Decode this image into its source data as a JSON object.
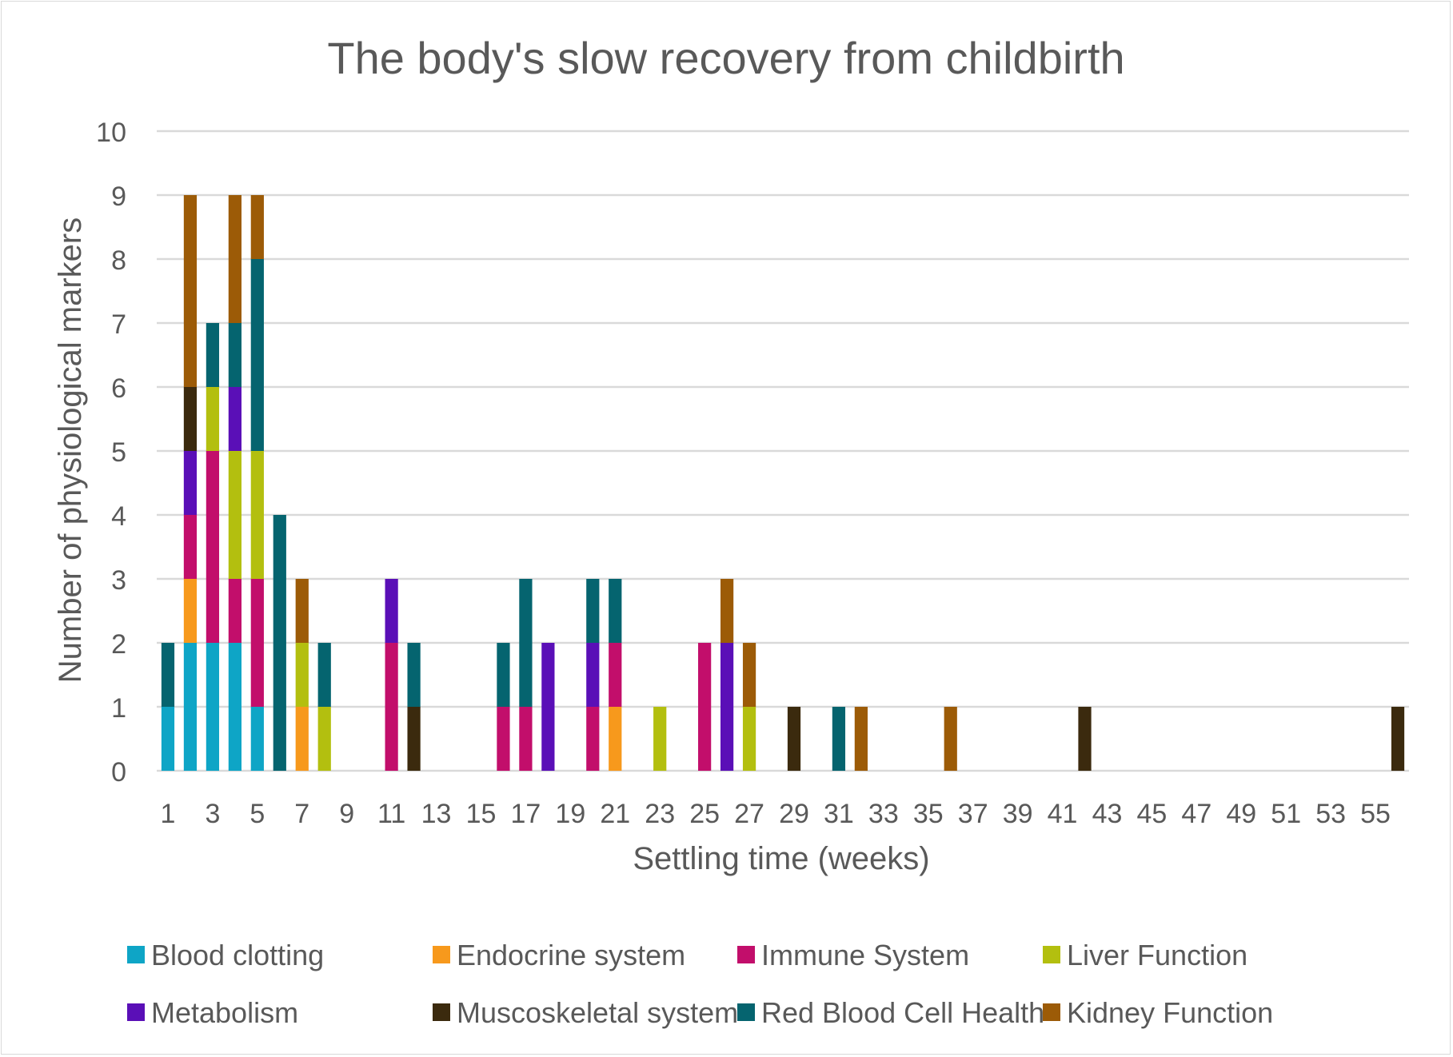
{
  "chart_data": {
    "type": "bar",
    "stacked": true,
    "title": "The body's slow recovery from childbirth",
    "xlabel": "Settling time (weeks)",
    "ylabel": "Number of physiological markers",
    "ylim": [
      0,
      10
    ],
    "yticks": [
      "0",
      "1",
      "2",
      "3",
      "4",
      "5",
      "6",
      "7",
      "8",
      "9",
      "10"
    ],
    "grid": true,
    "legend_position": "bottom",
    "categories": [
      "1",
      "2",
      "3",
      "4",
      "5",
      "6",
      "7",
      "8",
      "9",
      "10",
      "11",
      "12",
      "13",
      "14",
      "15",
      "16",
      "17",
      "18",
      "19",
      "20",
      "21",
      "22",
      "23",
      "24",
      "25",
      "26",
      "27",
      "28",
      "29",
      "30",
      "31",
      "32",
      "33",
      "34",
      "35",
      "36",
      "37",
      "38",
      "39",
      "40",
      "41",
      "42",
      "43",
      "44",
      "45",
      "46",
      "47",
      "48",
      "49",
      "50",
      "51",
      "52",
      "53",
      "54",
      "55",
      "56"
    ],
    "xtick_labels": [
      "1",
      "3",
      "5",
      "7",
      "9",
      "11",
      "13",
      "15",
      "17",
      "19",
      "21",
      "23",
      "25",
      "27",
      "29",
      "31",
      "33",
      "35",
      "37",
      "39",
      "41",
      "43",
      "45",
      "47",
      "49",
      "51",
      "53",
      "55"
    ],
    "series": [
      {
        "name": "Blood clotting",
        "color": "#0ea5c6",
        "values": [
          1,
          2,
          2,
          2,
          1,
          0,
          0,
          0,
          0,
          0,
          0,
          0,
          0,
          0,
          0,
          0,
          0,
          0,
          0,
          0,
          0,
          0,
          0,
          0,
          0,
          0,
          0,
          0,
          0,
          0,
          0,
          0,
          0,
          0,
          0,
          0,
          0,
          0,
          0,
          0,
          0,
          0,
          0,
          0,
          0,
          0,
          0,
          0,
          0,
          0,
          0,
          0,
          0,
          0,
          0,
          0
        ]
      },
      {
        "name": "Endocrine system",
        "color": "#f7991c",
        "values": [
          0,
          1,
          0,
          0,
          0,
          0,
          1,
          0,
          0,
          0,
          0,
          0,
          0,
          0,
          0,
          0,
          0,
          0,
          0,
          0,
          1,
          0,
          0,
          0,
          0,
          0,
          0,
          0,
          0,
          0,
          0,
          0,
          0,
          0,
          0,
          0,
          0,
          0,
          0,
          0,
          0,
          0,
          0,
          0,
          0,
          0,
          0,
          0,
          0,
          0,
          0,
          0,
          0,
          0,
          0,
          0
        ]
      },
      {
        "name": "Immune System",
        "color": "#c20e6b",
        "values": [
          0,
          1,
          3,
          1,
          2,
          0,
          0,
          0,
          0,
          0,
          2,
          0,
          0,
          0,
          0,
          1,
          1,
          0,
          0,
          1,
          1,
          0,
          0,
          0,
          2,
          0,
          0,
          0,
          0,
          0,
          0,
          0,
          0,
          0,
          0,
          0,
          0,
          0,
          0,
          0,
          0,
          0,
          0,
          0,
          0,
          0,
          0,
          0,
          0,
          0,
          0,
          0,
          0,
          0,
          0,
          0
        ]
      },
      {
        "name": "Liver Function",
        "color": "#b3bf0f",
        "values": [
          0,
          0,
          1,
          2,
          2,
          0,
          1,
          1,
          0,
          0,
          0,
          0,
          0,
          0,
          0,
          0,
          0,
          0,
          0,
          0,
          0,
          0,
          1,
          0,
          0,
          0,
          1,
          0,
          0,
          0,
          0,
          0,
          0,
          0,
          0,
          0,
          0,
          0,
          0,
          0,
          0,
          0,
          0,
          0,
          0,
          0,
          0,
          0,
          0,
          0,
          0,
          0,
          0,
          0,
          0,
          0
        ]
      },
      {
        "name": "Metabolism",
        "color": "#5a0fb7",
        "values": [
          0,
          1,
          0,
          1,
          0,
          0,
          0,
          0,
          0,
          0,
          1,
          0,
          0,
          0,
          0,
          0,
          0,
          2,
          0,
          1,
          0,
          0,
          0,
          0,
          0,
          2,
          0,
          0,
          0,
          0,
          0,
          0,
          0,
          0,
          0,
          0,
          0,
          0,
          0,
          0,
          0,
          0,
          0,
          0,
          0,
          0,
          0,
          0,
          0,
          0,
          0,
          0,
          0,
          0,
          0,
          0
        ]
      },
      {
        "name": "Muscoskeletal system",
        "color": "#3b2a0e",
        "values": [
          0,
          1,
          0,
          0,
          0,
          0,
          0,
          0,
          0,
          0,
          0,
          1,
          0,
          0,
          0,
          0,
          0,
          0,
          0,
          0,
          0,
          0,
          0,
          0,
          0,
          0,
          0,
          0,
          1,
          0,
          0,
          0,
          0,
          0,
          0,
          0,
          0,
          0,
          0,
          0,
          0,
          1,
          0,
          0,
          0,
          0,
          0,
          0,
          0,
          0,
          0,
          0,
          0,
          0,
          0,
          1
        ]
      },
      {
        "name": "Red Blood Cell Health",
        "color": "#05646f",
        "values": [
          1,
          0,
          1,
          1,
          3,
          4,
          0,
          1,
          0,
          0,
          0,
          1,
          0,
          0,
          0,
          1,
          2,
          0,
          0,
          1,
          1,
          0,
          0,
          0,
          0,
          0,
          0,
          0,
          0,
          0,
          1,
          0,
          0,
          0,
          0,
          0,
          0,
          0,
          0,
          0,
          0,
          0,
          0,
          0,
          0,
          0,
          0,
          0,
          0,
          0,
          0,
          0,
          0,
          0,
          0,
          0
        ]
      },
      {
        "name": "Kidney Function",
        "color": "#9c5b07",
        "values": [
          0,
          3,
          0,
          2,
          1,
          0,
          1,
          0,
          0,
          0,
          0,
          0,
          0,
          0,
          0,
          0,
          0,
          0,
          0,
          0,
          0,
          0,
          0,
          0,
          0,
          1,
          1,
          0,
          0,
          0,
          0,
          1,
          0,
          0,
          0,
          1,
          0,
          0,
          0,
          0,
          0,
          0,
          0,
          0,
          0,
          0,
          0,
          0,
          0,
          0,
          0,
          0,
          0,
          0,
          0,
          0
        ]
      }
    ]
  }
}
